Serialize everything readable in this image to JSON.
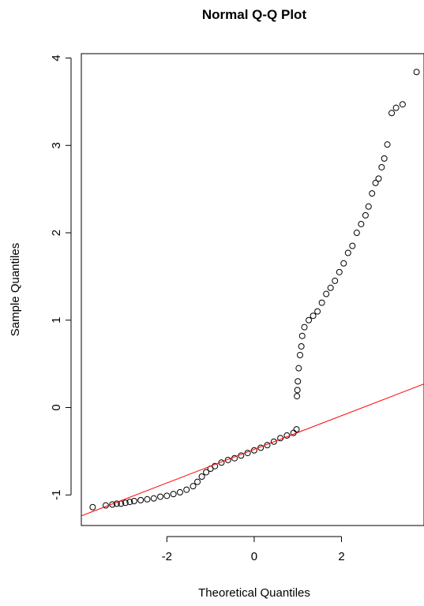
{
  "chart_data": {
    "type": "scatter",
    "title": "Normal Q-Q Plot",
    "x_label": "Theoretical Quantiles",
    "y_label": "Sample Quantiles",
    "xlim": [
      -3.96,
      3.89
    ],
    "ylim": [
      -1.35,
      4.05
    ],
    "xticks": [
      -2,
      0,
      2
    ],
    "yticks": [
      -1,
      0,
      1,
      2,
      3,
      4
    ],
    "series": [
      {
        "type": "scatter",
        "color": "#000000",
        "x": [
          -3.7,
          -3.4,
          -3.25,
          -3.15,
          -3.05,
          -2.95,
          -2.85,
          -2.75,
          -2.6,
          -2.45,
          -2.3,
          -2.15,
          -2.0,
          -1.85,
          -1.7,
          -1.55,
          -1.4,
          -1.3,
          -1.2,
          -1.1,
          -1.0,
          -0.9,
          -0.75,
          -0.6,
          -0.45,
          -0.3,
          -0.15,
          0.0,
          0.15,
          0.3,
          0.45,
          0.6,
          0.75,
          0.9,
          0.97,
          0.98,
          0.99,
          1.0,
          1.02,
          1.05,
          1.08,
          1.1,
          1.15,
          1.25,
          1.35,
          1.45,
          1.55,
          1.65,
          1.75,
          1.85,
          1.95,
          2.05,
          2.15,
          2.25,
          2.35,
          2.45,
          2.55,
          2.62,
          2.7,
          2.78,
          2.85,
          2.92,
          2.98,
          3.05,
          3.15,
          3.25,
          3.4,
          3.72
        ],
        "values": [
          -1.14,
          -1.12,
          -1.11,
          -1.1,
          -1.1,
          -1.09,
          -1.08,
          -1.07,
          -1.06,
          -1.05,
          -1.04,
          -1.02,
          -1.01,
          -0.99,
          -0.97,
          -0.94,
          -0.9,
          -0.85,
          -0.79,
          -0.74,
          -0.7,
          -0.67,
          -0.63,
          -0.6,
          -0.58,
          -0.55,
          -0.52,
          -0.49,
          -0.46,
          -0.43,
          -0.39,
          -0.35,
          -0.32,
          -0.29,
          -0.25,
          0.13,
          0.2,
          0.3,
          0.45,
          0.6,
          0.7,
          0.82,
          0.92,
          1.0,
          1.05,
          1.1,
          1.2,
          1.3,
          1.37,
          1.45,
          1.55,
          1.65,
          1.77,
          1.85,
          2.0,
          2.1,
          2.2,
          2.3,
          2.45,
          2.57,
          2.62,
          2.75,
          2.85,
          3.01,
          3.37,
          3.43,
          3.47,
          3.84
        ]
      },
      {
        "type": "line",
        "color": "#ff0000",
        "x": [
          -3.96,
          3.89
        ],
        "values": [
          -1.24,
          0.27
        ]
      }
    ]
  }
}
